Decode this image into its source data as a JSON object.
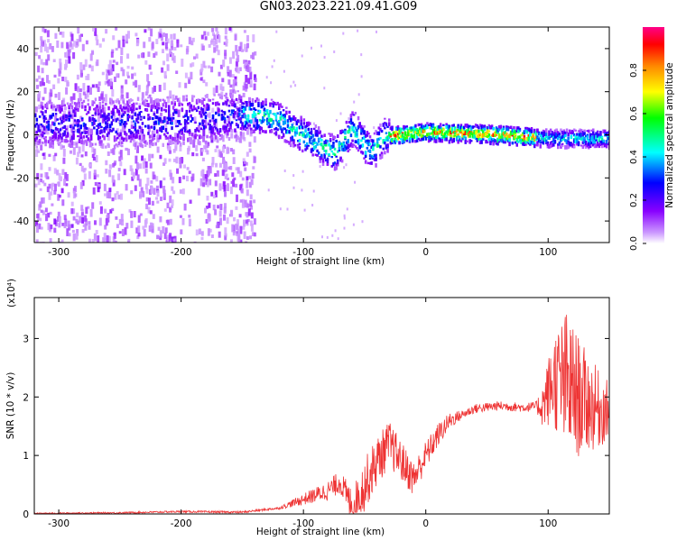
{
  "title": "GN03.2023.221.09.41.G09",
  "chart_data": [
    {
      "type": "heatmap",
      "xlabel": "Height of straight line (km)",
      "ylabel": "Frequency (Hz)",
      "xlim": [
        -320,
        150
      ],
      "ylim": [
        -50,
        50
      ],
      "xticks": [
        -300,
        -200,
        -100,
        0,
        100
      ],
      "yticks": [
        -40,
        -20,
        0,
        20,
        40
      ],
      "colorbar": {
        "label": "Normalized spectral amplitude",
        "range": [
          0.0,
          1.0
        ],
        "ticks": [
          "0.0",
          "0.2",
          "0.4",
          "0.6",
          "0.8"
        ],
        "colormap": "rainbow (white-purple-blue-cyan-green-yellow-red-magenta)"
      },
      "ridge_center_hz": [
        {
          "x": -320,
          "y": 6
        },
        {
          "x": -250,
          "y": 6
        },
        {
          "x": -180,
          "y": 8
        },
        {
          "x": -150,
          "y": 10
        },
        {
          "x": -125,
          "y": 9
        },
        {
          "x": -100,
          "y": 0
        },
        {
          "x": -75,
          "y": -8
        },
        {
          "x": -60,
          "y": 4
        },
        {
          "x": -45,
          "y": -8
        },
        {
          "x": -35,
          "y": 0
        },
        {
          "x": 0,
          "y": 2
        },
        {
          "x": 50,
          "y": 1
        },
        {
          "x": 100,
          "y": -1
        },
        {
          "x": 150,
          "y": -1
        }
      ]
    },
    {
      "type": "line",
      "xlabel": "Height of straight line (km)",
      "ylabel": "SNR (10 * v/v)",
      "yscale_label": "(x10⁴)",
      "xlim": [
        -320,
        150
      ],
      "ylim": [
        0,
        3.7
      ],
      "xticks": [
        -300,
        -200,
        -100,
        0,
        100
      ],
      "yticks": [
        0,
        1,
        2,
        3
      ],
      "series": [
        {
          "color": "#ee3333",
          "points": [
            {
              "x": -320,
              "y": 0.01
            },
            {
              "x": -250,
              "y": 0.02
            },
            {
              "x": -200,
              "y": 0.04
            },
            {
              "x": -150,
              "y": 0.03
            },
            {
              "x": -120,
              "y": 0.1
            },
            {
              "x": -100,
              "y": 0.25
            },
            {
              "x": -80,
              "y": 0.4
            },
            {
              "x": -70,
              "y": 0.55
            },
            {
              "x": -60,
              "y": 0.1
            },
            {
              "x": -50,
              "y": 0.5
            },
            {
              "x": -40,
              "y": 0.9
            },
            {
              "x": -30,
              "y": 1.2
            },
            {
              "x": -20,
              "y": 0.9
            },
            {
              "x": -10,
              "y": 0.6
            },
            {
              "x": 0,
              "y": 1.0
            },
            {
              "x": 10,
              "y": 1.35
            },
            {
              "x": 20,
              "y": 1.6
            },
            {
              "x": 40,
              "y": 1.8
            },
            {
              "x": 60,
              "y": 1.85
            },
            {
              "x": 80,
              "y": 1.82
            },
            {
              "x": 95,
              "y": 1.85
            },
            {
              "x": 105,
              "y": 2.3
            },
            {
              "x": 115,
              "y": 2.2
            },
            {
              "x": 125,
              "y": 2.0
            },
            {
              "x": 140,
              "y": 1.8
            },
            {
              "x": 150,
              "y": 1.75
            }
          ],
          "noise_amplitude": [
            {
              "x": -320,
              "y": 0.01
            },
            {
              "x": -120,
              "y": 0.02
            },
            {
              "x": -100,
              "y": 0.1
            },
            {
              "x": -70,
              "y": 0.2
            },
            {
              "x": -50,
              "y": 0.45
            },
            {
              "x": -30,
              "y": 0.4
            },
            {
              "x": -10,
              "y": 0.3
            },
            {
              "x": 10,
              "y": 0.2
            },
            {
              "x": 30,
              "y": 0.08
            },
            {
              "x": 90,
              "y": 0.08
            },
            {
              "x": 100,
              "y": 0.6
            },
            {
              "x": 115,
              "y": 1.3
            },
            {
              "x": 130,
              "y": 0.9
            },
            {
              "x": 150,
              "y": 0.5
            }
          ]
        }
      ]
    }
  ]
}
